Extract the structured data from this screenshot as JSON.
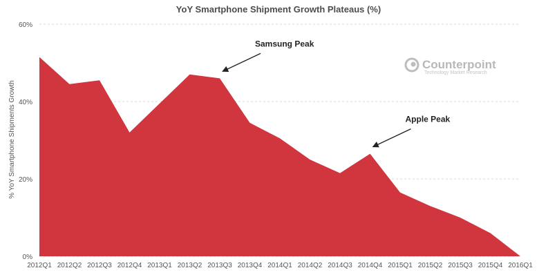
{
  "chart_data": {
    "type": "area",
    "title": "YoY Smartphone Shipment Growth Plateaus (%)",
    "ylabel": "% YoY Smartphone Shipments Growth",
    "xlabel": "",
    "categories": [
      "2012Q1",
      "2012Q2",
      "2012Q3",
      "2012Q4",
      "2013Q1",
      "2013Q2",
      "2013Q3",
      "2013Q4",
      "2014Q1",
      "2014Q2",
      "2014Q3",
      "2014Q4",
      "2015Q1",
      "2015Q2",
      "2015Q3",
      "2015Q4",
      "2016Q1"
    ],
    "values": [
      51.5,
      44.5,
      45.5,
      32,
      39.5,
      47,
      46,
      34.5,
      30.5,
      25,
      21.5,
      26.5,
      16.5,
      13,
      10,
      6,
      0
    ],
    "yticks": [
      0,
      20,
      40,
      60
    ],
    "ytick_labels": [
      "0%",
      "20%",
      "40%",
      "60%"
    ],
    "ylim": [
      0,
      60
    ],
    "grid": "horizontal dashed",
    "color": "#d1353e",
    "annotations": [
      {
        "text": "Samsung Peak",
        "category": "2013Q3",
        "value": 46
      },
      {
        "text": "Apple Peak",
        "category": "2014Q4",
        "value": 26.5
      }
    ]
  },
  "logo": {
    "name": "Counterpoint",
    "tagline": "Technology Market Research"
  }
}
